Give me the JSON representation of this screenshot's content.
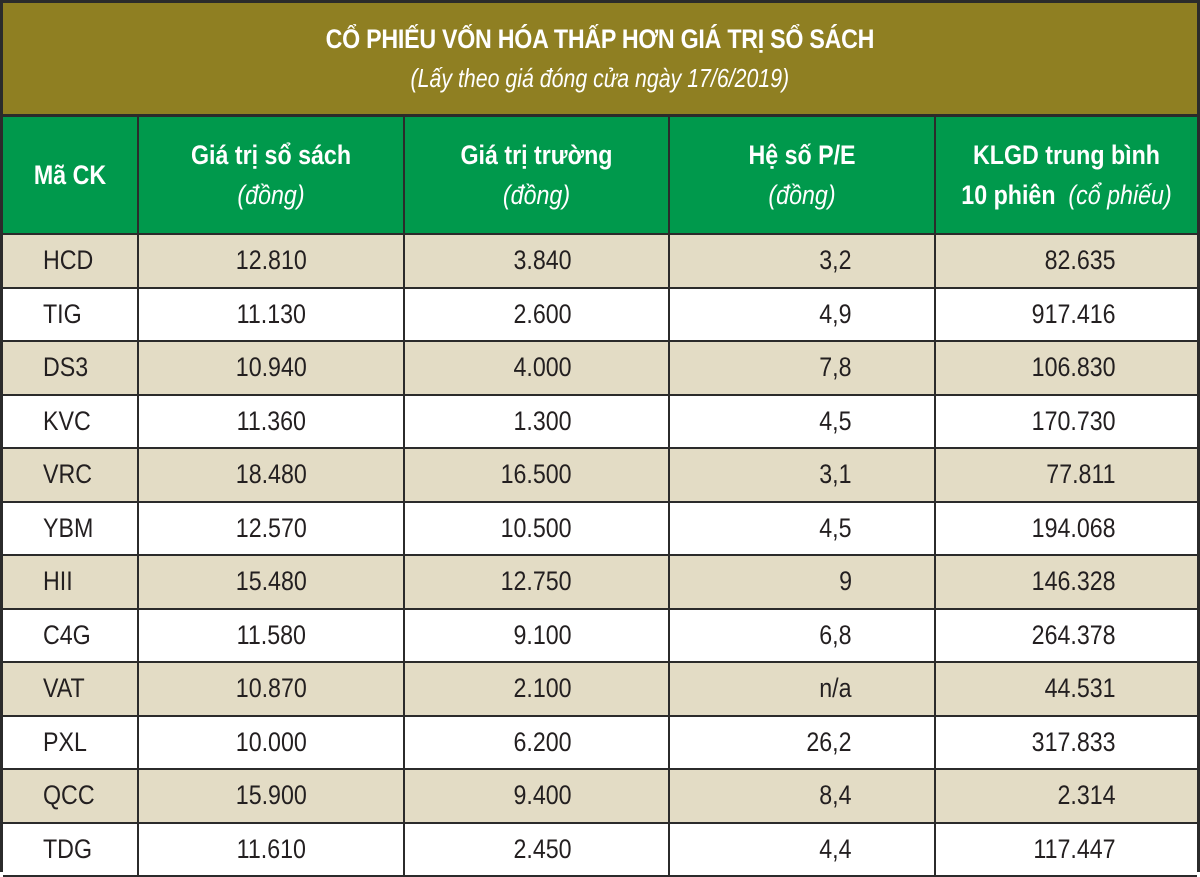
{
  "title": {
    "main": "CỔ PHIẾU VỐN HÓA THẤP HƠN GIÁ TRỊ SỔ SÁCH",
    "subtitle": "(Lấy theo giá đóng cửa ngày 17/6/2019)"
  },
  "colors": {
    "title_bg": "#8f7f22",
    "header_bg": "#00994c",
    "row_shade": "#e3dcc5",
    "row_plain": "#ffffff",
    "border": "#2b2b2b"
  },
  "table": {
    "headers": [
      {
        "line1": "Mã CK",
        "line2": ""
      },
      {
        "line1": "Giá trị sổ sách",
        "line2": "(đồng)"
      },
      {
        "line1": "Giá trị trường",
        "line2": "(đồng)"
      },
      {
        "line1": "Hệ số P/E",
        "line2": "(đồng)"
      },
      {
        "line1": "KLGD trung bình",
        "line2_bold": "10 phiên",
        "line2_unit": "(cổ phiếu)"
      }
    ],
    "rows": [
      {
        "code": "HCD",
        "book_value": "12.810",
        "market_value": "3.840",
        "pe": "3,2",
        "avg_volume": "82.635"
      },
      {
        "code": "TIG",
        "book_value": "11.130",
        "market_value": "2.600",
        "pe": "4,9",
        "avg_volume": "917.416"
      },
      {
        "code": "DS3",
        "book_value": "10.940",
        "market_value": "4.000",
        "pe": "7,8",
        "avg_volume": "106.830"
      },
      {
        "code": "KVC",
        "book_value": "11.360",
        "market_value": "1.300",
        "pe": "4,5",
        "avg_volume": "170.730"
      },
      {
        "code": "VRC",
        "book_value": "18.480",
        "market_value": "16.500",
        "pe": "3,1",
        "avg_volume": "77.811"
      },
      {
        "code": "YBM",
        "book_value": "12.570",
        "market_value": "10.500",
        "pe": "4,5",
        "avg_volume": "194.068"
      },
      {
        "code": "HII",
        "book_value": "15.480",
        "market_value": "12.750",
        "pe": "9",
        "avg_volume": "146.328"
      },
      {
        "code": "C4G",
        "book_value": "11.580",
        "market_value": "9.100",
        "pe": "6,8",
        "avg_volume": "264.378"
      },
      {
        "code": "VAT",
        "book_value": "10.870",
        "market_value": "2.100",
        "pe": "n/a",
        "avg_volume": "44.531"
      },
      {
        "code": "PXL",
        "book_value": "10.000",
        "market_value": "6.200",
        "pe": "26,2",
        "avg_volume": "317.833"
      },
      {
        "code": "QCC",
        "book_value": "15.900",
        "market_value": "9.400",
        "pe": "8,4",
        "avg_volume": "2.314"
      },
      {
        "code": "TDG",
        "book_value": "11.610",
        "market_value": "2.450",
        "pe": "4,4",
        "avg_volume": "117.447"
      }
    ]
  }
}
